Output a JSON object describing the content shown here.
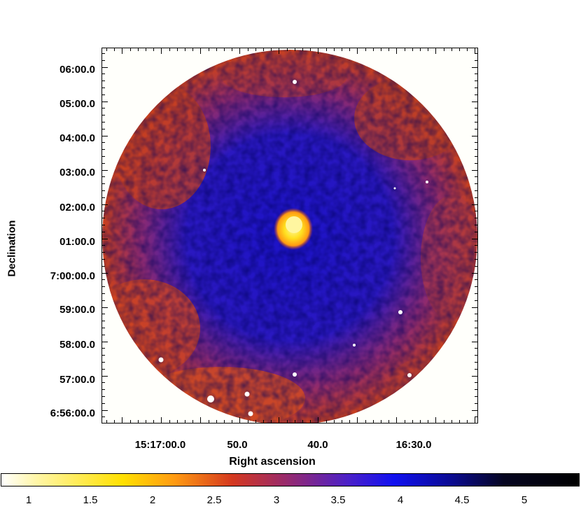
{
  "axes": {
    "y_title": "Declination",
    "x_title": "Right ascension",
    "y_ticks": [
      "06:00.0",
      "05:00.0",
      "04:00.0",
      "03:00.0",
      "02:00.0",
      "01:00.0",
      "7:00:00.0",
      "59:00.0",
      "58:00.0",
      "57:00.0",
      "6:56:00.0"
    ],
    "x_ticks": [
      "15:17:00.0",
      "50.0",
      "40.0",
      "16:30.0"
    ]
  },
  "colorbar": {
    "labels": [
      "1",
      "1.5",
      "2",
      "2.5",
      "3",
      "3.5",
      "4",
      "4.5",
      "5"
    ]
  },
  "colors": {
    "background": "#fffffb",
    "hot": "#d4381f",
    "cold": "#1010f0",
    "bright": "#ffe000"
  }
}
